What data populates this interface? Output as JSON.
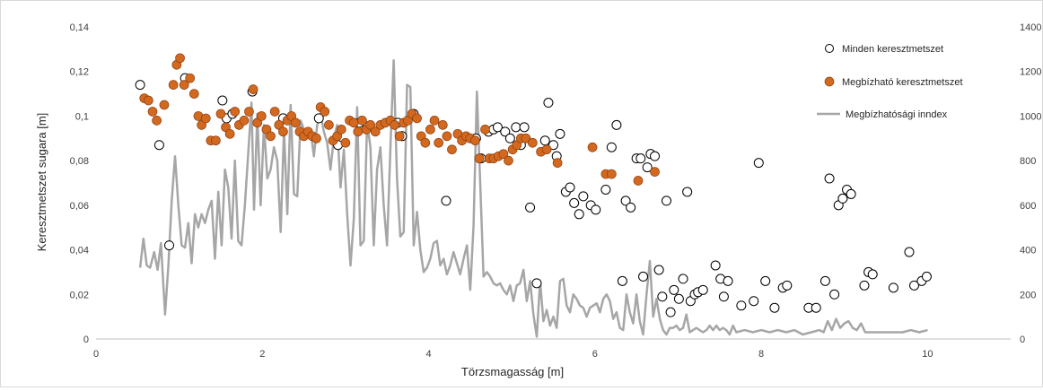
{
  "chart_data": {
    "type": "scatter",
    "title": "",
    "xlabel": "Törzsmagasság [m]",
    "ylabel": "Keresztmetszet sugara [m]",
    "xlim": [
      0,
      11
    ],
    "ylim": [
      0,
      0.14
    ],
    "y2lim": [
      0,
      1400
    ],
    "grid": false,
    "legend_position": "top-right",
    "x_ticks": [
      "0",
      "2",
      "4",
      "6",
      "8",
      "10"
    ],
    "y_ticks": [
      "0",
      "0,02",
      "0,04",
      "0,06",
      "0,08",
      "0,1",
      "0,12",
      "0,14"
    ],
    "y2_ticks": [
      "0",
      "200",
      "400",
      "600",
      "800",
      "1000",
      "1200",
      "1400"
    ],
    "series": [
      {
        "name": "Minden keresztmetszet",
        "style": "open-circle",
        "color": "#000000",
        "points": [
          [
            0.53,
            0.114
          ],
          [
            0.76,
            0.087
          ],
          [
            0.88,
            0.042
          ],
          [
            1.07,
            0.117
          ],
          [
            1.52,
            0.107
          ],
          [
            1.57,
            0.099
          ],
          [
            1.64,
            0.101
          ],
          [
            1.88,
            0.111
          ],
          [
            2.25,
            0.099
          ],
          [
            2.68,
            0.099
          ],
          [
            2.91,
            0.087
          ],
          [
            3.17,
            0.097
          ],
          [
            3.63,
            0.097
          ],
          [
            3.68,
            0.091
          ],
          [
            3.82,
            0.101
          ],
          [
            4.21,
            0.062
          ],
          [
            4.57,
            0.09
          ],
          [
            4.63,
            0.081
          ],
          [
            4.72,
            0.093
          ],
          [
            4.78,
            0.094
          ],
          [
            4.83,
            0.095
          ],
          [
            4.92,
            0.093
          ],
          [
            4.98,
            0.09
          ],
          [
            5.05,
            0.095
          ],
          [
            5.11,
            0.087
          ],
          [
            5.15,
            0.095
          ],
          [
            5.22,
            0.059
          ],
          [
            5.3,
            0.025
          ],
          [
            5.4,
            0.089
          ],
          [
            5.44,
            0.106
          ],
          [
            5.5,
            0.087
          ],
          [
            5.54,
            0.082
          ],
          [
            5.58,
            0.092
          ],
          [
            5.65,
            0.066
          ],
          [
            5.7,
            0.068
          ],
          [
            5.75,
            0.061
          ],
          [
            5.81,
            0.056
          ],
          [
            5.86,
            0.064
          ],
          [
            5.95,
            0.06
          ],
          [
            6.01,
            0.058
          ],
          [
            6.13,
            0.067
          ],
          [
            6.2,
            0.086
          ],
          [
            6.26,
            0.096
          ],
          [
            6.33,
            0.026
          ],
          [
            6.37,
            0.062
          ],
          [
            6.43,
            0.059
          ],
          [
            6.5,
            0.081
          ],
          [
            6.55,
            0.081
          ],
          [
            6.58,
            0.028
          ],
          [
            6.63,
            0.077
          ],
          [
            6.67,
            0.083
          ],
          [
            6.72,
            0.082
          ],
          [
            6.77,
            0.031
          ],
          [
            6.81,
            0.019
          ],
          [
            6.86,
            0.062
          ],
          [
            6.91,
            0.012
          ],
          [
            6.95,
            0.022
          ],
          [
            7.01,
            0.018
          ],
          [
            7.06,
            0.027
          ],
          [
            7.11,
            0.066
          ],
          [
            7.15,
            0.017
          ],
          [
            7.2,
            0.02
          ],
          [
            7.24,
            0.021
          ],
          [
            7.3,
            0.022
          ],
          [
            7.45,
            0.033
          ],
          [
            7.51,
            0.027
          ],
          [
            7.55,
            0.019
          ],
          [
            7.6,
            0.026
          ],
          [
            7.76,
            0.015
          ],
          [
            7.91,
            0.017
          ],
          [
            7.97,
            0.079
          ],
          [
            8.05,
            0.026
          ],
          [
            8.16,
            0.014
          ],
          [
            8.26,
            0.023
          ],
          [
            8.31,
            0.024
          ],
          [
            8.57,
            0.014
          ],
          [
            8.66,
            0.014
          ],
          [
            8.77,
            0.026
          ],
          [
            8.82,
            0.072
          ],
          [
            8.88,
            0.02
          ],
          [
            8.93,
            0.06
          ],
          [
            8.98,
            0.063
          ],
          [
            9.03,
            0.067
          ],
          [
            9.08,
            0.065
          ],
          [
            9.24,
            0.024
          ],
          [
            9.29,
            0.03
          ],
          [
            9.34,
            0.029
          ],
          [
            9.59,
            0.023
          ],
          [
            9.78,
            0.039
          ],
          [
            9.84,
            0.024
          ],
          [
            9.93,
            0.026
          ],
          [
            9.99,
            0.028
          ]
        ]
      },
      {
        "name": "Megbízható keresztmetszet",
        "style": "filled-circle",
        "color": "#d2691e",
        "points": [
          [
            0.58,
            0.108
          ],
          [
            0.63,
            0.107
          ],
          [
            0.68,
            0.102
          ],
          [
            0.73,
            0.098
          ],
          [
            0.82,
            0.105
          ],
          [
            0.93,
            0.114
          ],
          [
            0.97,
            0.123
          ],
          [
            1.01,
            0.126
          ],
          [
            1.06,
            0.114
          ],
          [
            1.13,
            0.117
          ],
          [
            1.18,
            0.11
          ],
          [
            1.23,
            0.1
          ],
          [
            1.27,
            0.096
          ],
          [
            1.32,
            0.099
          ],
          [
            1.38,
            0.089
          ],
          [
            1.44,
            0.089
          ],
          [
            1.5,
            0.101
          ],
          [
            1.56,
            0.095
          ],
          [
            1.61,
            0.092
          ],
          [
            1.67,
            0.102
          ],
          [
            1.72,
            0.096
          ],
          [
            1.78,
            0.098
          ],
          [
            1.84,
            0.102
          ],
          [
            1.89,
            0.112
          ],
          [
            1.94,
            0.097
          ],
          [
            1.99,
            0.1
          ],
          [
            2.05,
            0.094
          ],
          [
            2.1,
            0.091
          ],
          [
            2.15,
            0.102
          ],
          [
            2.2,
            0.096
          ],
          [
            2.25,
            0.093
          ],
          [
            2.3,
            0.098
          ],
          [
            2.35,
            0.1
          ],
          [
            2.4,
            0.097
          ],
          [
            2.45,
            0.093
          ],
          [
            2.5,
            0.091
          ],
          [
            2.55,
            0.093
          ],
          [
            2.6,
            0.091
          ],
          [
            2.65,
            0.09
          ],
          [
            2.7,
            0.104
          ],
          [
            2.75,
            0.102
          ],
          [
            2.8,
            0.096
          ],
          [
            2.85,
            0.089
          ],
          [
            2.9,
            0.091
          ],
          [
            2.95,
            0.094
          ],
          [
            3.0,
            0.088
          ],
          [
            3.05,
            0.098
          ],
          [
            3.1,
            0.097
          ],
          [
            3.15,
            0.093
          ],
          [
            3.2,
            0.098
          ],
          [
            3.25,
            0.094
          ],
          [
            3.3,
            0.096
          ],
          [
            3.36,
            0.093
          ],
          [
            3.42,
            0.096
          ],
          [
            3.48,
            0.097
          ],
          [
            3.54,
            0.098
          ],
          [
            3.59,
            0.096
          ],
          [
            3.65,
            0.091
          ],
          [
            3.7,
            0.097
          ],
          [
            3.75,
            0.098
          ],
          [
            3.8,
            0.101
          ],
          [
            3.86,
            0.099
          ],
          [
            3.91,
            0.091
          ],
          [
            3.96,
            0.088
          ],
          [
            4.02,
            0.094
          ],
          [
            4.07,
            0.098
          ],
          [
            4.12,
            0.088
          ],
          [
            4.17,
            0.096
          ],
          [
            4.22,
            0.091
          ],
          [
            4.28,
            0.085
          ],
          [
            4.35,
            0.092
          ],
          [
            4.4,
            0.089
          ],
          [
            4.45,
            0.091
          ],
          [
            4.5,
            0.09
          ],
          [
            4.56,
            0.089
          ],
          [
            4.61,
            0.081
          ],
          [
            4.68,
            0.094
          ],
          [
            4.73,
            0.081
          ],
          [
            4.78,
            0.081
          ],
          [
            4.84,
            0.082
          ],
          [
            4.9,
            0.083
          ],
          [
            4.96,
            0.08
          ],
          [
            5.01,
            0.085
          ],
          [
            5.06,
            0.087
          ],
          [
            5.11,
            0.09
          ],
          [
            5.17,
            0.09
          ],
          [
            5.25,
            0.088
          ],
          [
            5.35,
            0.084
          ],
          [
            5.42,
            0.085
          ],
          [
            5.55,
            0.079
          ],
          [
            5.97,
            0.086
          ],
          [
            6.13,
            0.074
          ],
          [
            6.2,
            0.074
          ],
          [
            6.52,
            0.071
          ],
          [
            6.72,
            0.075
          ]
        ]
      },
      {
        "name": "Megbízhatósági inndex",
        "style": "line",
        "axis": "y2",
        "color": "#a6a6a6",
        "x": [
          0.53,
          0.57,
          0.61,
          0.65,
          0.7,
          0.74,
          0.78,
          0.83,
          0.87,
          0.91,
          0.95,
          0.99,
          1.03,
          1.07,
          1.11,
          1.15,
          1.19,
          1.23,
          1.27,
          1.31,
          1.35,
          1.39,
          1.43,
          1.47,
          1.51,
          1.55,
          1.59,
          1.63,
          1.67,
          1.71,
          1.75,
          1.79,
          1.83,
          1.87,
          1.9,
          1.94,
          1.98,
          2.02,
          2.06,
          2.1,
          2.14,
          2.18,
          2.22,
          2.26,
          2.3,
          2.34,
          2.38,
          2.42,
          2.46,
          2.5,
          2.54,
          2.58,
          2.62,
          2.66,
          2.7,
          2.74,
          2.78,
          2.82,
          2.86,
          2.9,
          2.94,
          2.98,
          3.02,
          3.06,
          3.1,
          3.14,
          3.18,
          3.22,
          3.26,
          3.3,
          3.34,
          3.38,
          3.42,
          3.46,
          3.5,
          3.54,
          3.58,
          3.62,
          3.66,
          3.7,
          3.74,
          3.78,
          3.82,
          3.86,
          3.9,
          3.94,
          3.98,
          4.02,
          4.06,
          4.1,
          4.14,
          4.18,
          4.22,
          4.26,
          4.3,
          4.34,
          4.38,
          4.42,
          4.46,
          4.5,
          4.54,
          4.58,
          4.62,
          4.66,
          4.7,
          4.74,
          4.78,
          4.82,
          4.86,
          4.9,
          4.94,
          4.98,
          5.02,
          5.06,
          5.1,
          5.14,
          5.18,
          5.22,
          5.26,
          5.3,
          5.34,
          5.38,
          5.42,
          5.46,
          5.5,
          5.54,
          5.58,
          5.62,
          5.66,
          5.7,
          5.74,
          5.78,
          5.82,
          5.86,
          5.9,
          5.94,
          5.98,
          6.02,
          6.06,
          6.1,
          6.14,
          6.18,
          6.22,
          6.26,
          6.3,
          6.34,
          6.38,
          6.42,
          6.46,
          6.5,
          6.54,
          6.58,
          6.62,
          6.66,
          6.7,
          6.74,
          6.78,
          6.82,
          6.86,
          6.9,
          6.94,
          6.98,
          7.02,
          7.06,
          7.1,
          7.14,
          7.18,
          7.22,
          7.26,
          7.3,
          7.34,
          7.38,
          7.42,
          7.46,
          7.5,
          7.54,
          7.58,
          7.62,
          7.66,
          7.7,
          7.8,
          7.9,
          8.0,
          8.1,
          8.2,
          8.3,
          8.4,
          8.5,
          8.6,
          8.7,
          8.75,
          8.8,
          8.85,
          8.9,
          8.95,
          9.0,
          9.05,
          9.1,
          9.15,
          9.2,
          9.25,
          9.3,
          9.4,
          9.5,
          9.6,
          9.7,
          9.8,
          9.9,
          10.0
        ],
        "y": [
          320,
          450,
          330,
          320,
          390,
          310,
          430,
          110,
          330,
          620,
          820,
          600,
          420,
          410,
          520,
          340,
          560,
          500,
          560,
          520,
          580,
          620,
          360,
          660,
          420,
          760,
          680,
          450,
          800,
          440,
          420,
          600,
          830,
          1060,
          580,
          1010,
          600,
          960,
          720,
          760,
          860,
          800,
          480,
          940,
          560,
          1050,
          650,
          640,
          980,
          940,
          920,
          940,
          820,
          960,
          1010,
          930,
          880,
          760,
          900,
          960,
          680,
          850,
          560,
          330,
          540,
          1040,
          420,
          440,
          970,
          860,
          420,
          760,
          860,
          600,
          420,
          850,
          1250,
          720,
          460,
          480,
          1140,
          1130,
          420,
          570,
          400,
          300,
          320,
          360,
          430,
          440,
          330,
          360,
          290,
          330,
          390,
          340,
          290,
          360,
          420,
          220,
          510,
          1110,
          700,
          280,
          300,
          280,
          250,
          240,
          250,
          220,
          200,
          240,
          170,
          240,
          250,
          310,
          170,
          260,
          110,
          10,
          260,
          80,
          130,
          60,
          100,
          50,
          260,
          270,
          150,
          120,
          200,
          180,
          150,
          140,
          100,
          140,
          150,
          160,
          120,
          180,
          200,
          170,
          90,
          120,
          50,
          40,
          200,
          120,
          70,
          200,
          80,
          20,
          200,
          350,
          100,
          180,
          90,
          40,
          20,
          50,
          50,
          60,
          40,
          50,
          110,
          30,
          40,
          50,
          40,
          30,
          40,
          60,
          40,
          60,
          40,
          50,
          40,
          20,
          60,
          30,
          40,
          30,
          40,
          30,
          40,
          30,
          40,
          20,
          30,
          40,
          30,
          80,
          40,
          90,
          50,
          70,
          80,
          50,
          40,
          70,
          30,
          30,
          30,
          30,
          30,
          30,
          40,
          30,
          40
        ]
      }
    ],
    "legend": [
      {
        "label": "Minden keresztmetszet",
        "marker": "open-circle"
      },
      {
        "label": "Megbízható keresztmetszet",
        "marker": "filled-circle"
      },
      {
        "label": "Megbízhatósági inndex",
        "marker": "line"
      }
    ]
  }
}
